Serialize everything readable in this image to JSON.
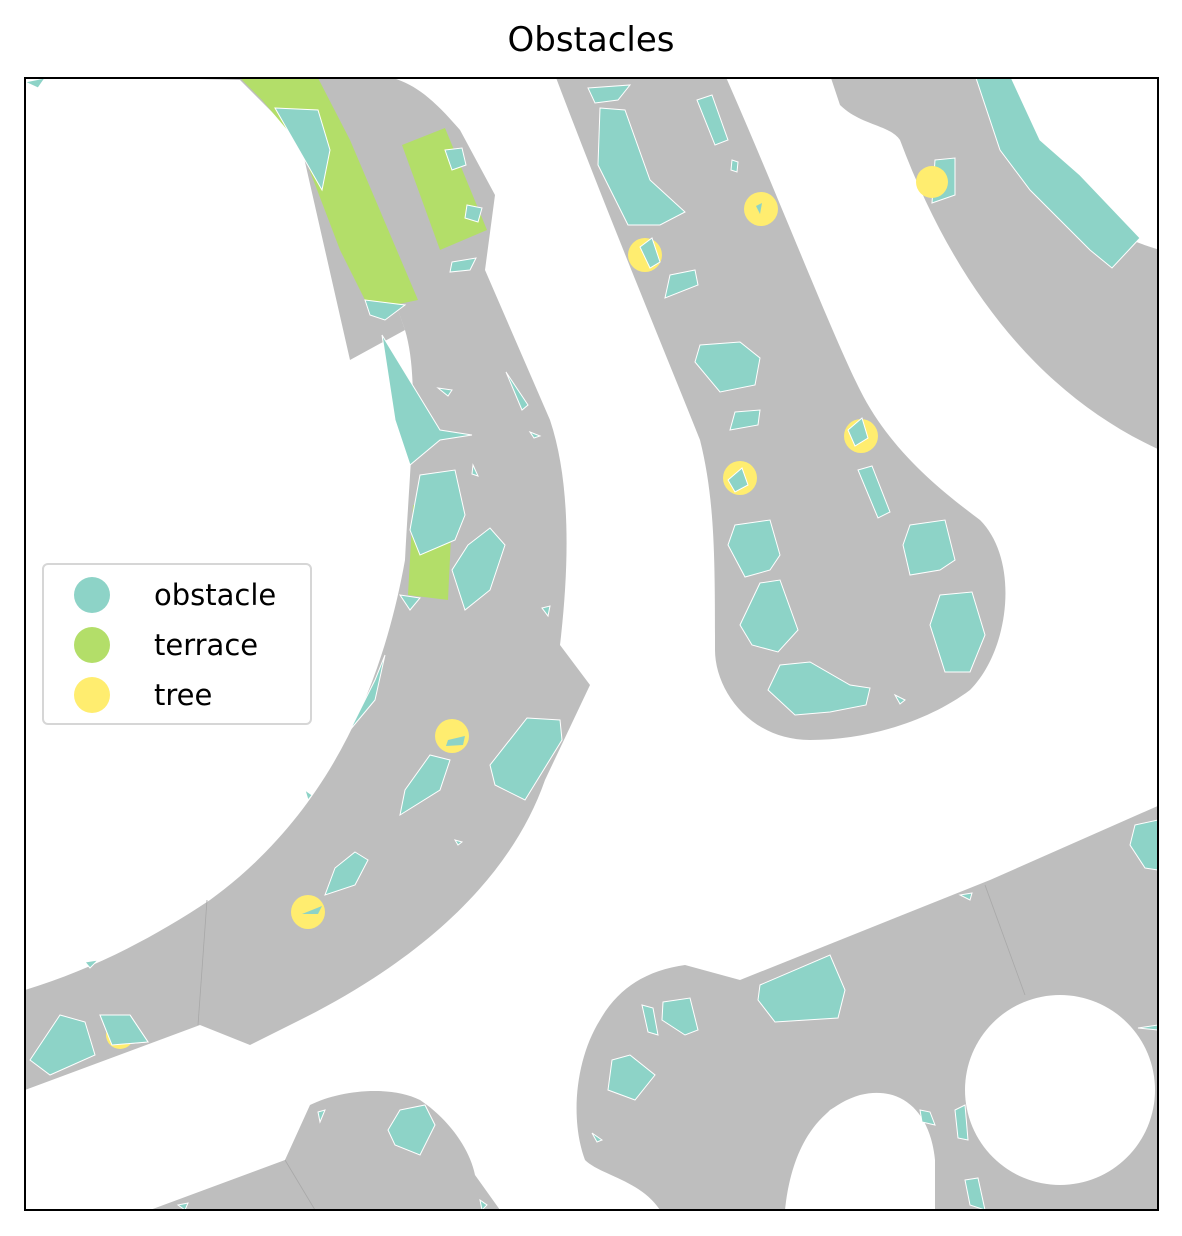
{
  "map": {
    "title": "Obstacles",
    "legend": {
      "placement": "center-left",
      "items": [
        {
          "key": "obstacle",
          "label": "obstacle",
          "color": "#8dd3c7"
        },
        {
          "key": "terrace",
          "label": "terrace",
          "color": "#b3de69"
        },
        {
          "key": "tree",
          "label": "tree",
          "color": "#ffed6f"
        }
      ]
    },
    "colors": {
      "road": "#bebebe",
      "background": "#ffffff",
      "obstacle": "#8dd3c7",
      "terrace": "#b3de69",
      "tree": "#ffed6f",
      "frame": "#000000"
    }
  }
}
